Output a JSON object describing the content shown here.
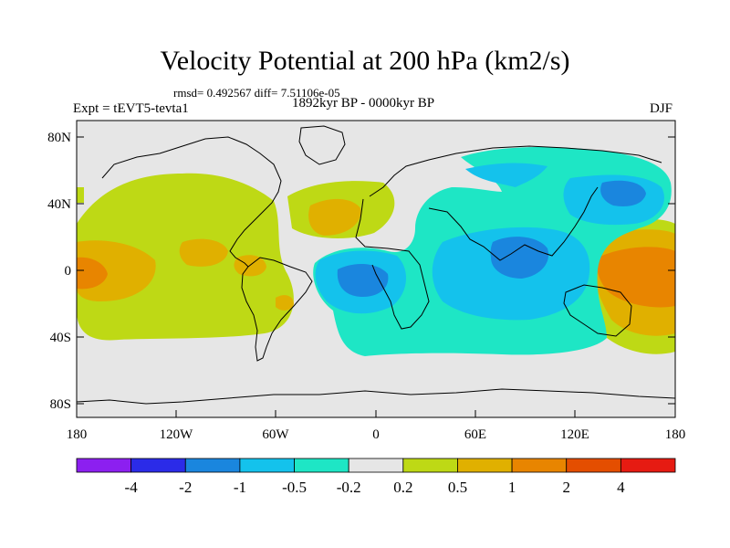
{
  "title": "Velocity Potential at 200 hPa (km2/s)",
  "stats": "rmsd= 0.492567  diff= 7.51106e-05",
  "experiment": "Expt = tEVT5-tevta1",
  "period": "1892kyr BP - 0000kyr BP",
  "season": "DJF",
  "lat_labels": [
    "80N",
    "40N",
    "0",
    "40S",
    "80S"
  ],
  "lon_labels": [
    "180",
    "120W",
    "60W",
    "0",
    "60E",
    "120E",
    "180"
  ],
  "colorbar": {
    "colors": [
      "#8c1ff0",
      "#2b2be8",
      "#1a86de",
      "#14c2ec",
      "#1ee6c5",
      "#e6e6e6",
      "#bed915",
      "#e0b000",
      "#e88500",
      "#e44e00",
      "#e61b12"
    ],
    "labels": [
      "-4",
      "-2",
      "-1",
      "-0.5",
      "-0.2",
      "0.2",
      "0.5",
      "1",
      "2",
      "4"
    ]
  }
}
